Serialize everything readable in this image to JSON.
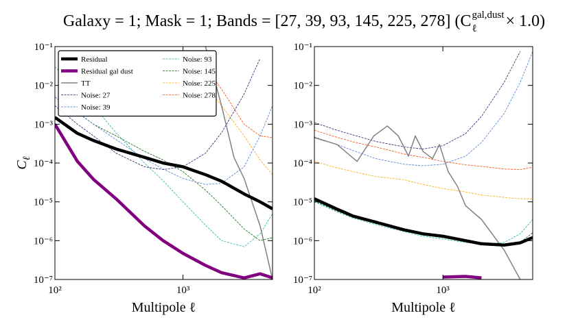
{
  "title": {
    "text": "Galaxy = 1; Mask = 1; Bands = [27, 39, 93, 145, 225, 278] (C",
    "superscript": "gal,dust",
    "subscript": "ℓ",
    "suffix": " × 1.0)"
  },
  "chart_data": [
    {
      "type": "line",
      "xscale": "log",
      "yscale": "log",
      "xlabel": "Multipole ℓ",
      "ylabel": "C",
      "ylabel_subscript": "ℓ",
      "xlim": [
        100,
        5000
      ],
      "ylim": [
        1e-07,
        0.1
      ],
      "xticks": [
        {
          "value": 100,
          "label": "10²"
        },
        {
          "value": 1000,
          "label": "10³"
        }
      ],
      "yticks": [
        {
          "value": 1e-07,
          "label": "10⁻⁷"
        },
        {
          "value": 1e-06,
          "label": "10⁻⁶"
        },
        {
          "value": 1e-05,
          "label": "10⁻⁵"
        },
        {
          "value": 0.0001,
          "label": "10⁻⁴"
        },
        {
          "value": 0.001,
          "label": "10⁻³"
        },
        {
          "value": 0.01,
          "label": "10⁻²"
        },
        {
          "value": 0.1,
          "label": "10⁻¹"
        }
      ],
      "legend": "upper left",
      "legend_ncol": 2,
      "x": [
        100,
        150,
        200,
        300,
        500,
        700,
        1000,
        1500,
        2000,
        3000,
        4000,
        5000
      ],
      "series": [
        {
          "name": "Residual",
          "color": "#000000",
          "style": "thick",
          "values": [
            0.0015,
            0.00058,
            0.00038,
            0.00023,
            0.00014,
            0.0001,
            8e-05,
            5e-05,
            3.4e-05,
            1.6e-05,
            1e-05,
            6.6e-06
          ]
        },
        {
          "name": "Residual gal dust",
          "color": "#800080",
          "style": "thick",
          "values": [
            0.001,
            0.00011,
            3.8e-05,
            1.2e-05,
            2.4e-06,
            1e-06,
            4.7e-07,
            2.3e-07,
            1.5e-07,
            1.1e-07,
            1.4e-07,
            1.1e-07
          ]
        },
        {
          "name": "TT",
          "color": "#808080",
          "style": "solid",
          "x": [
            1500,
            2000,
            2500,
            3000,
            4000,
            5000
          ],
          "values": [
            0.1,
            0.003,
            0.00014,
            4e-05,
            2.4e-06,
            1e-07
          ]
        },
        {
          "name": "Noise: 27",
          "color": "#191970",
          "style": "dashed",
          "values": [
            0.003,
            0.001,
            0.0005,
            0.00018,
            8e-05,
            6.8e-05,
            8e-05,
            0.00018,
            0.0006,
            0.006,
            0.05,
            null
          ]
        },
        {
          "name": "Noise: 39",
          "color": "#4a78d0",
          "style": "dashed",
          "values": [
            0.005,
            0.002,
            0.001,
            0.0004,
            0.00013,
            7e-05,
            4e-05,
            2.8e-05,
            3e-05,
            8e-05,
            0.0005,
            0.003
          ]
        },
        {
          "name": "Noise: 93",
          "color": "#20b2aa",
          "style": "dashed",
          "values": [
            0.03,
            0.008,
            0.003,
            0.0006,
            0.0001,
            3.5e-05,
            1e-05,
            2.5e-06,
            1e-06,
            7e-07,
            1.5e-06,
            5e-06
          ]
        },
        {
          "name": "Noise: 145",
          "color": "#006400",
          "style": "dashed",
          "values": [
            0.005,
            0.002,
            0.001,
            0.0005,
            0.0002,
            0.00012,
            6e-05,
            2e-05,
            8e-06,
            2e-06,
            1e-06,
            1.2e-06
          ]
        },
        {
          "name": "Noise: 225",
          "color": "#ffa500",
          "style": "dashed",
          "values": [
            null,
            null,
            null,
            null,
            null,
            null,
            0.05,
            0.01,
            0.003,
            0.0005,
            0.00012,
            5e-05
          ]
        },
        {
          "name": "Noise: 278",
          "color": "#ff4500",
          "style": "dashed",
          "values": [
            null,
            null,
            null,
            null,
            null,
            null,
            null,
            0.03,
            0.008,
            0.001,
            0.0005,
            0.00045
          ]
        }
      ]
    },
    {
      "type": "line",
      "xscale": "log",
      "yscale": "log",
      "xlabel": "Multipole ℓ",
      "xlim": [
        100,
        5000
      ],
      "ylim": [
        1e-07,
        0.1
      ],
      "xticks": [
        {
          "value": 100,
          "label": "10²"
        },
        {
          "value": 1000,
          "label": "10³"
        }
      ],
      "yticks": [
        {
          "value": 1e-07,
          "label": "10⁻⁷"
        },
        {
          "value": 1e-06,
          "label": "10⁻⁶"
        },
        {
          "value": 1e-05,
          "label": "10⁻⁵"
        },
        {
          "value": 0.0001,
          "label": "10⁻⁴"
        },
        {
          "value": 0.001,
          "label": "10⁻³"
        },
        {
          "value": 0.01,
          "label": "10⁻²"
        },
        {
          "value": 0.1,
          "label": "10⁻¹"
        }
      ],
      "x": [
        100,
        150,
        200,
        300,
        500,
        700,
        1000,
        1500,
        2000,
        3000,
        4000,
        5000
      ],
      "series": [
        {
          "color": "#000000",
          "style": "thick",
          "values": [
            1.2e-05,
            6.5e-06,
            4.3e-06,
            3e-06,
            1.9e-06,
            1.5e-06,
            1.3e-06,
            1e-06,
            8.3e-07,
            7.7e-07,
            8.8e-07,
            1.2e-06
          ]
        },
        {
          "color": "#800080",
          "style": "thick",
          "values": [
            null,
            null,
            null,
            null,
            null,
            null,
            1.15e-07,
            1.2e-07,
            1.1e-07,
            null,
            null,
            null
          ]
        },
        {
          "color": "#808080",
          "style": "solid",
          "x": [
            100,
            150,
            215,
            290,
            370,
            450,
            540,
            610,
            700,
            830,
            940,
            1100,
            1300,
            1500,
            2000,
            3000,
            4000
          ],
          "values": [
            0.00045,
            0.0003,
            0.00011,
            0.0005,
            0.0009,
            0.0005,
            0.00015,
            0.0005,
            0.0002,
            0.00013,
            0.0003,
            6e-05,
            2.5e-05,
            8e-06,
            3.5e-06,
            5.7e-07,
            1e-07
          ]
        },
        {
          "color": "#191970",
          "style": "dashed",
          "values": [
            0.0011,
            0.0007,
            0.00053,
            0.00036,
            0.00026,
            0.00023,
            0.00028,
            0.00057,
            0.0016,
            0.012,
            0.075,
            null
          ]
        },
        {
          "color": "#4a78d0",
          "style": "dashed",
          "values": [
            0.00047,
            0.0003,
            0.00021,
            0.00013,
            9.3e-05,
            8.5e-05,
            9.3e-05,
            0.00015,
            0.00034,
            0.0019,
            0.012,
            0.075
          ]
        },
        {
          "color": "#20b2aa",
          "style": "dashed",
          "values": [
            1e-05,
            5.5e-06,
            3.8e-06,
            2.6e-06,
            1.7e-06,
            1.3e-06,
            1.1e-06,
            9e-07,
            8e-07,
            9e-07,
            1.5e-06,
            3.5e-06
          ]
        },
        {
          "color": "#006400",
          "style": "dashed",
          "values": [
            1.05e-05,
            5.8e-06,
            4e-06,
            2.8e-06,
            1.8e-06,
            1.4e-06,
            1.2e-06,
            1e-06,
            9e-07,
            8e-07,
            9e-07,
            1.6e-06
          ]
        },
        {
          "color": "#ffa500",
          "style": "dashed",
          "values": [
            0.00011,
            7.5e-05,
            6e-05,
            4.5e-05,
            3.7e-05,
            2.8e-05,
            2.2e-05,
            1.8e-05,
            1.5e-05,
            1.3e-05,
            1.2e-05,
            1.2e-05
          ]
        },
        {
          "color": "#ff4500",
          "style": "dashed",
          "values": [
            0.0007,
            0.00046,
            0.00035,
            0.00026,
            0.00017,
            0.00014,
            0.00011,
            9e-05,
            8.2e-05,
            7e-05,
            6.8e-05,
            7.8e-05
          ]
        }
      ]
    }
  ]
}
